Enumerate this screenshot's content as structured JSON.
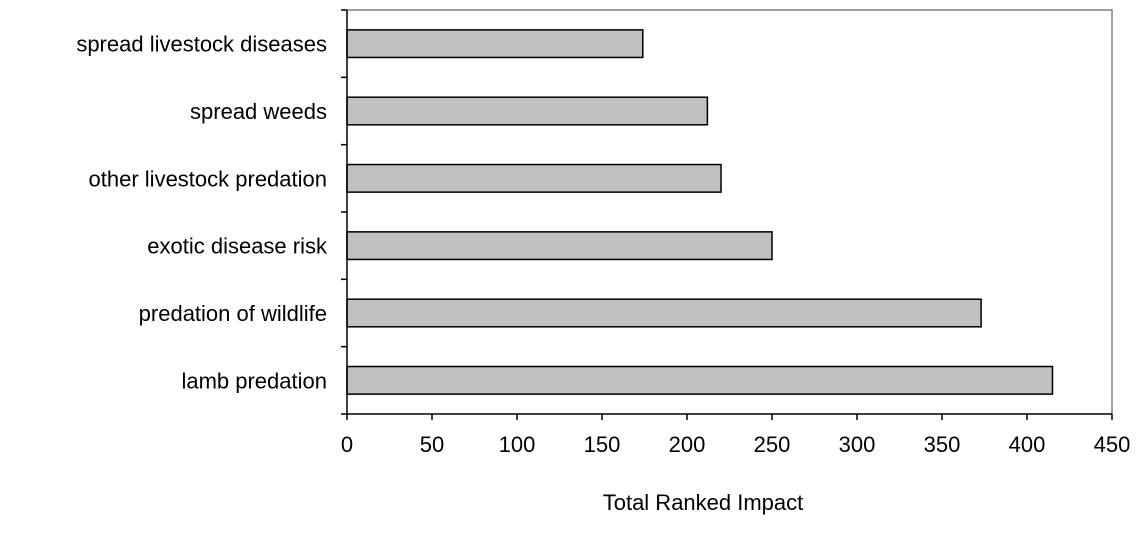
{
  "chart_data": {
    "type": "bar",
    "orientation": "horizontal",
    "categories": [
      "spread livestock diseases",
      "spread weeds",
      "other livestock predation",
      "exotic disease risk",
      "predation of wildlife",
      "lamb predation"
    ],
    "values": [
      174,
      212,
      220,
      250,
      373,
      415
    ],
    "xlabel": "Total Ranked Impact",
    "ylabel": "",
    "xlim": [
      0,
      450
    ],
    "x_ticks": [
      0,
      50,
      100,
      150,
      200,
      250,
      300,
      350,
      400,
      450
    ],
    "grid": false,
    "legend": "none",
    "colors": {
      "bar_fill": "#c0c0c0",
      "bar_stroke": "#000000",
      "plot_border": "#808080",
      "axis": "#000000"
    }
  }
}
